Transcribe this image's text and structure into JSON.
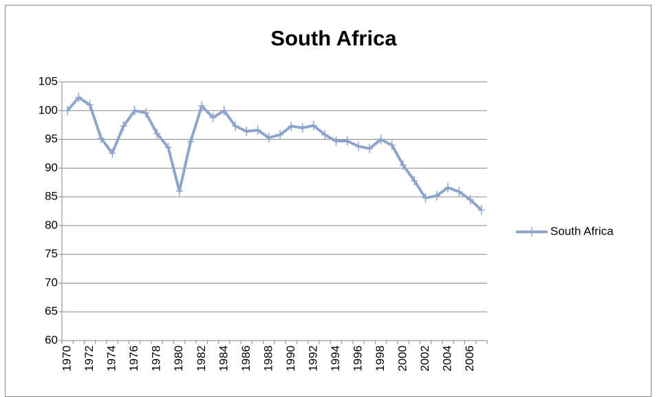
{
  "chart_data": {
    "type": "line",
    "title": "South Africa",
    "categories": [
      "1970",
      null,
      "1972",
      null,
      "1974",
      null,
      "1976",
      null,
      "1978",
      null,
      "1980",
      null,
      "1982",
      null,
      "1984",
      null,
      "1986",
      null,
      "1988",
      null,
      "1990",
      null,
      "1992",
      null,
      "1994",
      null,
      "1996",
      null,
      "1998",
      null,
      "2000",
      null,
      "2002",
      null,
      "2004",
      null,
      "2006",
      null
    ],
    "series": [
      {
        "name": "South Africa",
        "color": "#8ea5cb",
        "values": [
          100,
          102.3,
          101,
          95.2,
          92.6,
          97.3,
          100,
          99.6,
          96,
          93.6,
          86,
          94.6,
          100.8,
          98.8,
          100,
          97.3,
          96.4,
          96.6,
          95.3,
          95.8,
          97.3,
          97,
          97.4,
          95.8,
          94.7,
          94.7,
          93.8,
          93.4,
          95,
          94,
          90.5,
          87.8,
          84.8,
          85.2,
          86.6,
          85.9,
          84.5,
          82.7
        ]
      }
    ],
    "ylim": [
      60,
      105
    ],
    "yticks": [
      60,
      65,
      70,
      75,
      80,
      85,
      90,
      95,
      100,
      105
    ],
    "grid": true,
    "legend": "right"
  }
}
